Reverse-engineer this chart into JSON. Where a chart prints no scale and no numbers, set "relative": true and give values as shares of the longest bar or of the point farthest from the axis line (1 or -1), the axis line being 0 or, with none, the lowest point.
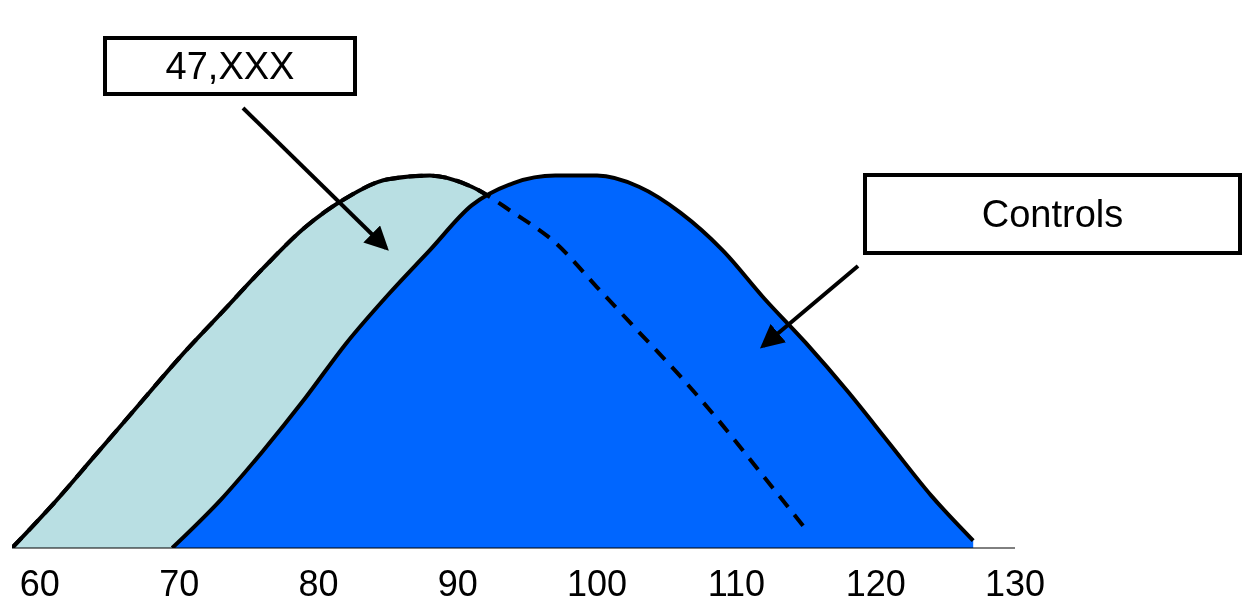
{
  "chart_data": {
    "type": "area",
    "relative": true,
    "legend": false,
    "xlim": [
      58,
      130
    ],
    "xticks": [
      60,
      70,
      80,
      90,
      100,
      110,
      120,
      130
    ],
    "series": [
      {
        "name": "47,XXX",
        "color": "#b9dfe3",
        "line_style": "dashed",
        "x": [
          58,
          61,
          64,
          67,
          70,
          73,
          76,
          79,
          82,
          85,
          88,
          91,
          94,
          97,
          100,
          103,
          106,
          109,
          112,
          115
        ],
        "values": [
          0,
          0.12,
          0.25,
          0.38,
          0.51,
          0.63,
          0.75,
          0.86,
          0.94,
          0.99,
          1,
          0.97,
          0.9,
          0.82,
          0.7,
          0.58,
          0.46,
          0.33,
          0.19,
          0.05
        ]
      },
      {
        "name": "Controls",
        "color": "#0066ff",
        "x": [
          69.5,
          73,
          76,
          79,
          82,
          85,
          88,
          91,
          94,
          97,
          100,
          103,
          106,
          109,
          112,
          115,
          118,
          121,
          124,
          127
        ],
        "values": [
          0,
          0.13,
          0.26,
          0.4,
          0.55,
          0.68,
          0.8,
          0.92,
          0.98,
          1,
          1,
          0.97,
          0.9,
          0.8,
          0.67,
          0.55,
          0.42,
          0.28,
          0.14,
          0.02
        ]
      }
    ]
  }
}
